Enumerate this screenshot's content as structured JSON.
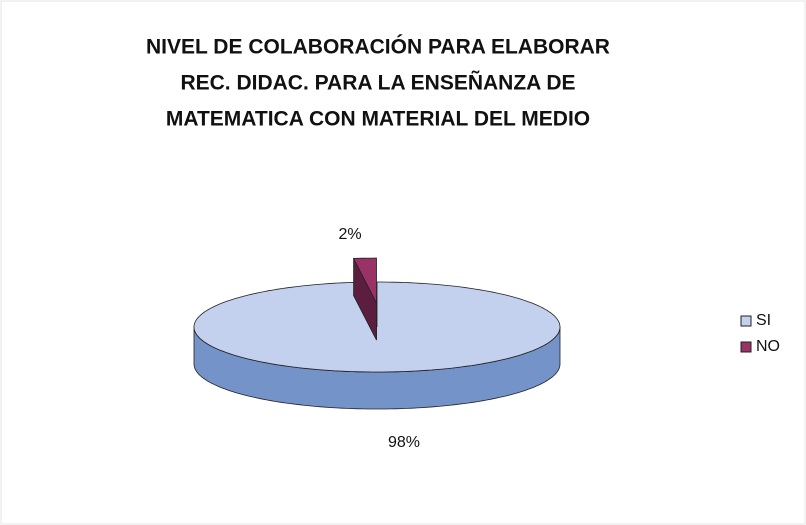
{
  "chart_data": {
    "type": "pie3d",
    "title": [
      "NIVEL DE COLABORACIÓN PARA ELABORAR",
      "REC. DIDAC. PARA LA ENSEÑANZA DE",
      "MATEMATICA CON MATERIAL DEL MEDIO"
    ],
    "categories": [
      "SI",
      "NO"
    ],
    "values": [
      98,
      2
    ],
    "value_labels": [
      "98%",
      "2%"
    ],
    "colors": [
      "#c3d1ef",
      "#993366"
    ],
    "side_colors": [
      "#7493c9",
      "#5c1e3e"
    ],
    "exploded": [
      false,
      true
    ],
    "legend": "right"
  }
}
